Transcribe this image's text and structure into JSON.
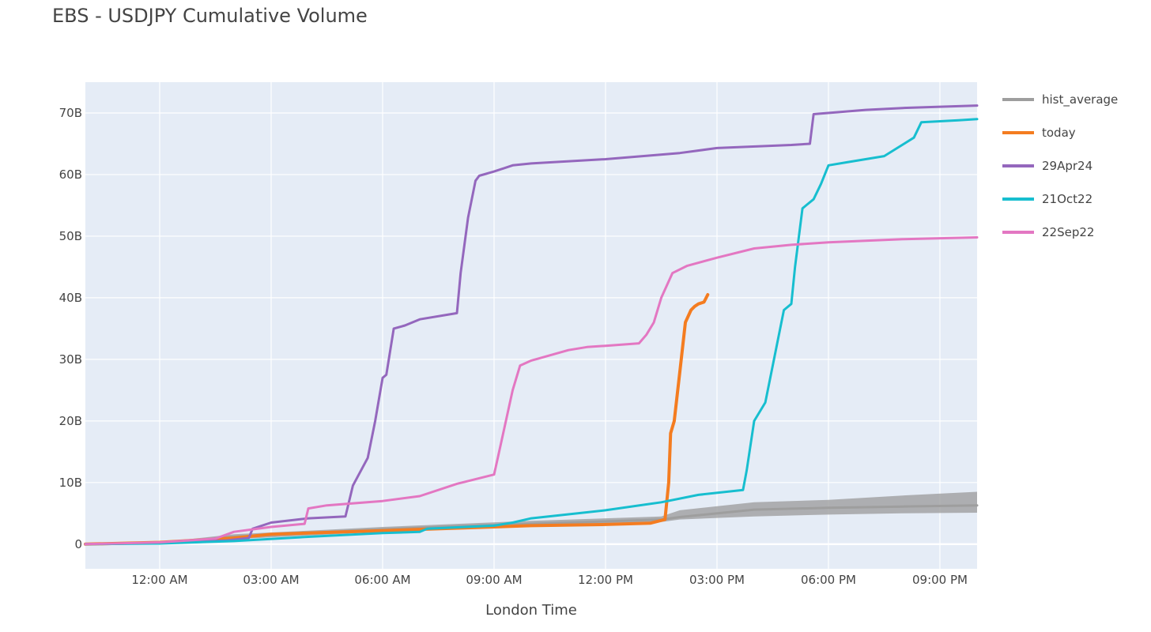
{
  "chart_data": {
    "type": "line",
    "title": "EBS - USDJPY Cumulative Volume",
    "xlabel": "London Time",
    "ylabel": "",
    "x_unit": "hours from 00:00",
    "xlim": [
      -2.0,
      22.0
    ],
    "ylim": [
      -4,
      75
    ],
    "x_ticks": [
      {
        "x": 0,
        "label": "12:00 AM"
      },
      {
        "x": 3,
        "label": "03:00 AM"
      },
      {
        "x": 6,
        "label": "06:00 AM"
      },
      {
        "x": 9,
        "label": "09:00 AM"
      },
      {
        "x": 12,
        "label": "12:00 PM"
      },
      {
        "x": 15,
        "label": "03:00 PM"
      },
      {
        "x": 18,
        "label": "06:00 PM"
      },
      {
        "x": 21,
        "label": "09:00 PM"
      }
    ],
    "y_ticks": [
      {
        "y": 0,
        "label": "0"
      },
      {
        "y": 10,
        "label": "10B"
      },
      {
        "y": 20,
        "label": "20B"
      },
      {
        "y": 30,
        "label": "30B"
      },
      {
        "y": 40,
        "label": "40B"
      },
      {
        "y": 50,
        "label": "50B"
      },
      {
        "y": 60,
        "label": "60B"
      },
      {
        "y": 70,
        "label": "70B"
      }
    ],
    "grid": true,
    "legend_position": "right",
    "band": {
      "name": "hist_range",
      "color": "#9a9a9a",
      "x": [
        -2,
        0,
        2,
        4,
        6,
        8,
        10,
        12,
        13.5,
        14,
        16,
        18,
        20,
        22
      ],
      "low": [
        0,
        0.1,
        0.8,
        1.4,
        2.0,
        2.5,
        2.9,
        3.3,
        3.6,
        4.0,
        4.5,
        4.8,
        5.0,
        5.1
      ],
      "high": [
        0,
        0.3,
        1.6,
        2.2,
        2.8,
        3.3,
        3.8,
        4.2,
        4.5,
        5.5,
        6.8,
        7.2,
        7.9,
        8.5
      ]
    },
    "series": [
      {
        "name": "hist_average",
        "color": "#9e9e9e",
        "width": 3,
        "x": [
          -2,
          0,
          2,
          4,
          6,
          8,
          10,
          12,
          13.5,
          14,
          16,
          18,
          20,
          22
        ],
        "y": [
          0,
          0.2,
          1.2,
          1.8,
          2.4,
          2.9,
          3.3,
          3.7,
          4.0,
          4.4,
          5.6,
          5.9,
          6.1,
          6.3
        ]
      },
      {
        "name": "today",
        "color": "#f47c20",
        "width": 4,
        "x": [
          -2,
          0,
          2,
          3,
          6,
          9,
          10,
          12,
          13.2,
          13.6,
          13.7,
          13.75,
          13.85,
          14.0,
          14.15,
          14.3,
          14.4,
          14.5,
          14.65,
          14.75
        ],
        "y": [
          0,
          0.3,
          1.0,
          1.6,
          2.2,
          2.8,
          3.0,
          3.2,
          3.4,
          4.0,
          10.0,
          18.0,
          20.0,
          28.0,
          36.0,
          38.0,
          38.6,
          39.0,
          39.3,
          40.5
        ]
      },
      {
        "name": "29Apr24",
        "color": "#9467bd",
        "width": 3,
        "x": [
          -2,
          0,
          1.8,
          2.4,
          2.5,
          3.0,
          4.0,
          5.0,
          5.2,
          5.6,
          5.8,
          6.0,
          6.1,
          6.3,
          6.6,
          7.0,
          8.0,
          8.1,
          8.3,
          8.5,
          8.6,
          9.0,
          9.5,
          10.0,
          12.0,
          14.0,
          15.0,
          17.0,
          17.5,
          17.6,
          19.0,
          20.0,
          22.0
        ],
        "y": [
          0,
          0.2,
          0.6,
          1.0,
          2.5,
          3.5,
          4.2,
          4.5,
          9.5,
          14.0,
          20.0,
          27.0,
          27.5,
          35.0,
          35.5,
          36.5,
          37.5,
          44.0,
          53.0,
          59.0,
          59.8,
          60.5,
          61.5,
          61.8,
          62.5,
          63.5,
          64.3,
          64.8,
          65.0,
          69.8,
          70.5,
          70.8,
          71.2
        ]
      },
      {
        "name": "21Oct22",
        "color": "#17becf",
        "width": 3,
        "x": [
          -2,
          0,
          2,
          4,
          6,
          7.0,
          7.2,
          9,
          9.5,
          10,
          12,
          13.5,
          14.5,
          15.7,
          15.8,
          16.0,
          16.3,
          16.6,
          16.8,
          17.0,
          17.1,
          17.3,
          17.4,
          17.6,
          17.8,
          18.0,
          18.5,
          19.0,
          19.5,
          20.3,
          20.5,
          21.5,
          22.0
        ],
        "y": [
          0,
          0.1,
          0.5,
          1.2,
          1.8,
          2.0,
          2.5,
          3.0,
          3.5,
          4.2,
          5.5,
          6.8,
          8.0,
          8.8,
          12.0,
          20.0,
          23.0,
          32.0,
          38.0,
          39.0,
          45.0,
          54.5,
          55.0,
          56.0,
          58.5,
          61.5,
          62.0,
          62.5,
          63.0,
          66.0,
          68.5,
          68.8,
          69.0
        ]
      },
      {
        "name": "22Sep22",
        "color": "#e377c2",
        "width": 3,
        "x": [
          -2,
          0,
          1.5,
          2.0,
          3.0,
          3.9,
          4.0,
          4.5,
          6.0,
          7.0,
          8.0,
          9.0,
          9.1,
          9.5,
          9.7,
          10.0,
          11.0,
          11.5,
          12.0,
          12.9,
          13.1,
          13.3,
          13.5,
          13.8,
          14.2,
          15.0,
          16.0,
          17.0,
          18.0,
          20.0,
          22.0
        ],
        "y": [
          0,
          0.3,
          0.9,
          2.0,
          2.8,
          3.3,
          5.8,
          6.3,
          7.0,
          7.8,
          9.8,
          11.3,
          14.0,
          25.0,
          29.0,
          29.8,
          31.5,
          32.0,
          32.2,
          32.6,
          34.0,
          36.0,
          40.0,
          44.0,
          45.2,
          46.5,
          48.0,
          48.6,
          49.0,
          49.5,
          49.8
        ]
      }
    ]
  }
}
